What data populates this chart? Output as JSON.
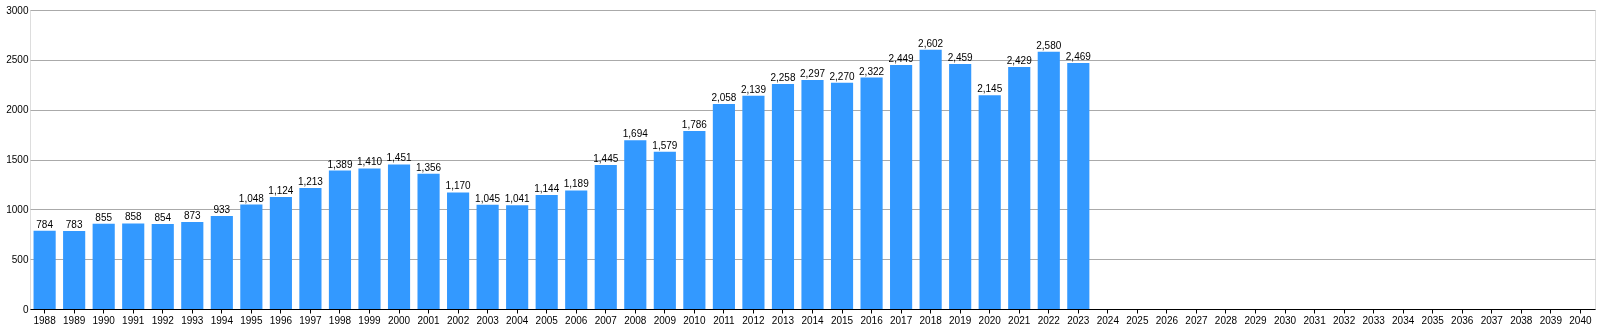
{
  "chart_data": {
    "type": "bar",
    "categories": [
      "1988",
      "1989",
      "1990",
      "1991",
      "1992",
      "1993",
      "1994",
      "1995",
      "1996",
      "1997",
      "1998",
      "1999",
      "2000",
      "2001",
      "2002",
      "2003",
      "2004",
      "2005",
      "2006",
      "2007",
      "2008",
      "2009",
      "2010",
      "2011",
      "2012",
      "2013",
      "2014",
      "2015",
      "2016",
      "2017",
      "2018",
      "2019",
      "2020",
      "2021",
      "2022",
      "2023",
      "2024",
      "2025",
      "2026",
      "2027",
      "2028",
      "2029",
      "2030",
      "2031",
      "2032",
      "2033",
      "2034",
      "2035",
      "2036",
      "2037",
      "2038",
      "2039",
      "2040"
    ],
    "values": [
      784,
      783,
      855,
      858,
      854,
      873,
      933,
      1048,
      1124,
      1213,
      1389,
      1410,
      1451,
      1356,
      1170,
      1045,
      1041,
      1144,
      1189,
      1445,
      1694,
      1579,
      1786,
      2058,
      2139,
      2258,
      2297,
      2270,
      2322,
      2449,
      2602,
      2459,
      2145,
      2429,
      2580,
      2469,
      null,
      null,
      null,
      null,
      null,
      null,
      null,
      null,
      null,
      null,
      null,
      null,
      null,
      null,
      null,
      null,
      null
    ],
    "value_labels": [
      "784",
      "783",
      "855",
      "858",
      "854",
      "873",
      "933",
      "1,048",
      "1,124",
      "1,213",
      "1,389",
      "1,410",
      "1,451",
      "1,356",
      "1,170",
      "1,045",
      "1,041",
      "1,144",
      "1,189",
      "1,445",
      "1,694",
      "1,579",
      "1,786",
      "2,058",
      "2,139",
      "2,258",
      "2,297",
      "2,270",
      "2,322",
      "2,449",
      "2,602",
      "2,459",
      "2,145",
      "2,429",
      "2,580",
      "2,469",
      null,
      null,
      null,
      null,
      null,
      null,
      null,
      null,
      null,
      null,
      null,
      null,
      null,
      null,
      null,
      null,
      null
    ],
    "color": "#3399ff",
    "ylim": [
      0,
      3000
    ],
    "yticks": [
      0,
      500,
      1000,
      1500,
      2000,
      2500,
      3000
    ],
    "grid": "y"
  }
}
